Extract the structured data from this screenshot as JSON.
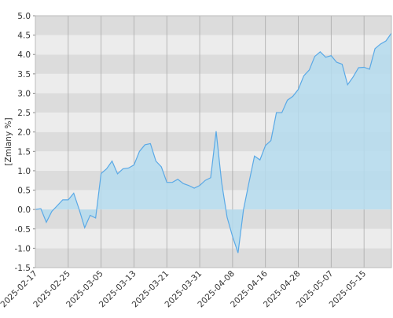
{
  "chart_data": {
    "type": "area",
    "y_label": "[Zmiany %]",
    "categories": [
      "2025-02-17",
      null,
      null,
      null,
      null,
      null,
      "2025-02-25",
      null,
      null,
      null,
      null,
      null,
      "2025-03-05",
      null,
      null,
      null,
      null,
      null,
      "2025-03-13",
      null,
      null,
      null,
      null,
      null,
      "2025-03-21",
      null,
      null,
      null,
      null,
      null,
      "2025-03-31",
      null,
      null,
      null,
      null,
      null,
      "2025-04-08",
      null,
      null,
      null,
      null,
      null,
      "2025-04-16",
      null,
      null,
      null,
      null,
      null,
      "2025-04-28",
      null,
      null,
      null,
      null,
      null,
      "2025-05-07",
      null,
      null,
      null,
      null,
      null,
      "2025-05-15",
      null,
      null,
      null,
      null,
      null
    ],
    "series": [
      {
        "color": "#5aa9e6",
        "fill": "#b5dcef",
        "values": [
          0.0,
          0.02,
          -0.33,
          -0.05,
          0.1,
          0.25,
          0.25,
          0.42,
          0.0,
          -0.47,
          -0.15,
          -0.22,
          0.93,
          1.05,
          1.25,
          0.92,
          1.05,
          1.07,
          1.15,
          1.5,
          1.67,
          1.7,
          1.25,
          1.1,
          0.7,
          0.7,
          0.78,
          0.67,
          0.62,
          0.55,
          0.62,
          0.75,
          0.82,
          2.02,
          0.7,
          -0.2,
          -0.7,
          -1.12,
          0.0,
          0.7,
          1.38,
          1.28,
          1.65,
          1.78,
          2.5,
          2.5,
          2.82,
          2.92,
          3.1,
          3.45,
          3.6,
          3.95,
          4.07,
          3.93,
          3.97,
          3.8,
          3.75,
          3.22,
          3.42,
          3.66,
          3.67,
          3.62,
          4.15,
          4.27,
          4.35,
          4.55
        ]
      }
    ],
    "ylim": [
      -1.5,
      5.0
    ],
    "yticks": [
      -1.5,
      {
        "value": -1.0,
        "label": "-1.0"
      },
      -0.5,
      {
        "value": 0.0,
        "label": "0.0"
      },
      0.5,
      {
        "value": 1.0,
        "label": "1.0"
      },
      1.5,
      {
        "value": 2.0,
        "label": "2.0"
      },
      2.5,
      {
        "value": 3.0,
        "label": "3.0"
      },
      3.5,
      {
        "value": 4.0,
        "label": "4.0"
      },
      4.5,
      {
        "value": 5.0,
        "label": "5.0"
      }
    ],
    "grid": true,
    "stripe_colors": [
      "#dcdcdc",
      "#ececec"
    ]
  }
}
